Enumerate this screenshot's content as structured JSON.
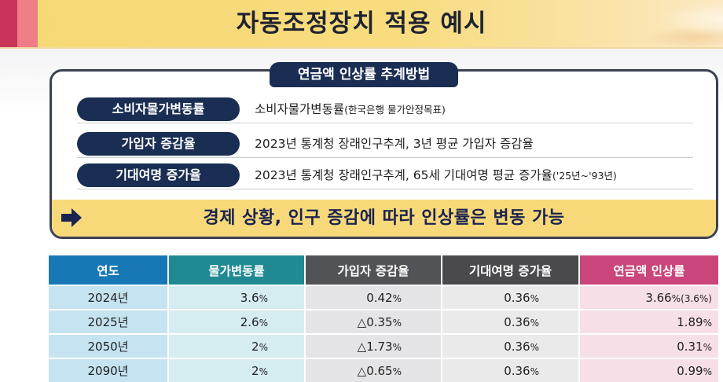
{
  "header": {
    "title": "자동조정장치 적용 예시"
  },
  "method": {
    "tab_label": "연금액 인상률 추계방법",
    "rows": [
      {
        "label": "소비자물가변동률",
        "desc": "소비자물가변동률",
        "note": "(한국은행 물가안정목표)"
      },
      {
        "label": "가입자 증감율",
        "desc": "2023년 통계청 장래인구추계, 3년 평균 가입자 증감율",
        "note": ""
      },
      {
        "label": "기대여명 증가율",
        "desc": "2023년 통계청 장래인구추계, 65세 기대여명 평균 증가율",
        "note": "('25년~'93년)"
      }
    ],
    "highlight": "경제 상황, 인구 증감에 따라 인상률은 변동 가능"
  },
  "table": {
    "headers": [
      "연도",
      "물가변동률",
      "가입자 증감율",
      "기대여명 증가율",
      "연금액 인상률"
    ],
    "rows": [
      {
        "year": "2024년",
        "price": "3.6",
        "sub": "0.42",
        "life": "0.36",
        "pension": "3.66",
        "pension_note": "(3.6%)"
      },
      {
        "year": "2025년",
        "price": "2.6",
        "sub": "△0.35",
        "life": "0.36",
        "pension": "1.89",
        "pension_note": ""
      },
      {
        "year": "2050년",
        "price": "2",
        "sub": "△1.73",
        "life": "0.36",
        "pension": "0.31",
        "pension_note": ""
      },
      {
        "year": "2090년",
        "price": "2",
        "sub": "△0.65",
        "life": "0.36",
        "pension": "0.99",
        "pension_note": ""
      }
    ],
    "unit": "%"
  }
}
